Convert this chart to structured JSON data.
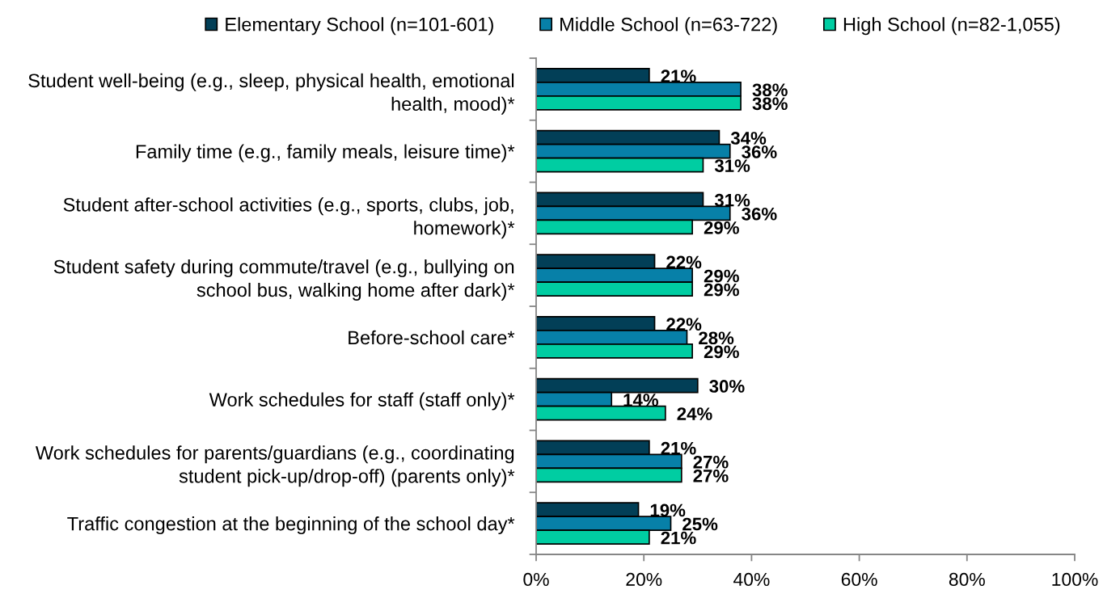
{
  "chart_data": {
    "type": "bar",
    "orientation": "horizontal",
    "categories": [
      "Student well-being (e.g., sleep, physical health, emotional\nhealth, mood)*",
      "Family time (e.g., family meals, leisure time)*",
      "Student after-school activities (e.g., sports, clubs, job,\nhomework)*",
      "Student safety during commute/travel (e.g., bullying on\nschool bus, walking home after dark)*",
      "Before-school care*",
      "Work schedules for staff (staff only)*",
      "Work schedules for parents/guardians (e.g., coordinating\nstudent pick-up/drop-off) (parents only)*",
      "Traffic congestion at the beginning of the school day*"
    ],
    "series": [
      {
        "name": "Elementary School (n=101-601)",
        "color": "#023f57",
        "values": [
          21,
          34,
          31,
          22,
          22,
          30,
          21,
          19
        ],
        "value_labels": [
          "21%",
          "34%",
          "31%",
          "22%",
          "22%",
          "30%",
          "21%",
          "19%"
        ]
      },
      {
        "name": "Middle School (n=63-722)",
        "color": "#0780a8",
        "values": [
          38,
          36,
          36,
          29,
          28,
          14,
          27,
          25
        ],
        "value_labels": [
          "38%",
          "36%",
          "36%",
          "29%",
          "28%",
          "14%",
          "27%",
          "25%"
        ]
      },
      {
        "name": "High School (n=82-1,055)",
        "color": "#00cda2",
        "values": [
          38,
          31,
          29,
          29,
          29,
          24,
          27,
          21
        ],
        "value_labels": [
          "38%",
          "31%",
          "29%",
          "29%",
          "29%",
          "24%",
          "27%",
          "21%"
        ]
      }
    ],
    "xlim": [
      0,
      100
    ],
    "xticks": [
      {
        "value": 0,
        "label": "0%"
      },
      {
        "value": 20,
        "label": "20%"
      },
      {
        "value": 40,
        "label": "40%"
      },
      {
        "value": 60,
        "label": "60%"
      },
      {
        "value": 80,
        "label": "80%"
      },
      {
        "value": 100,
        "label": "100%"
      }
    ],
    "legend": "top",
    "grid": false
  }
}
